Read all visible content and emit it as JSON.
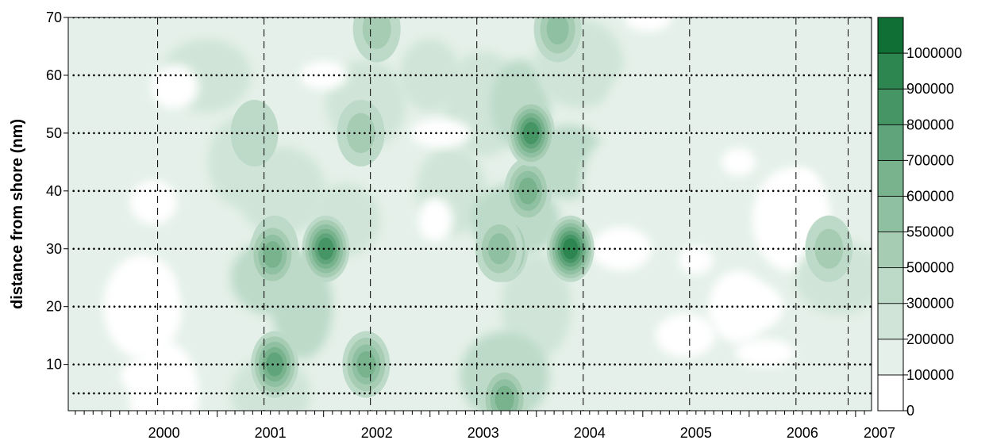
{
  "chart_data": {
    "type": "heatmap",
    "title": "",
    "xlabel": "",
    "ylabel": "distance from shore (nm)",
    "x_tick_labels": [
      "2000",
      "2001",
      "2002",
      "2003",
      "2004",
      "2005",
      "2006",
      "2007"
    ],
    "x_range": [
      1999.6,
      2007.15
    ],
    "y_ticks": [
      10,
      20,
      30,
      40,
      50,
      60,
      70
    ],
    "y_range": [
      2,
      70
    ],
    "colorbar": {
      "levels": [
        0,
        100000,
        200000,
        300000,
        500000,
        550000,
        600000,
        700000,
        800000,
        900000,
        1000000
      ],
      "labels": [
        "0",
        "100000",
        "200000",
        "300000",
        "500000",
        "550000",
        "600000",
        "700000",
        "800000",
        "900000",
        "1000000"
      ],
      "colors": [
        "#ffffff",
        "#e4f0e9",
        "#d0e5d8",
        "#bcdac7",
        "#a6cdb4",
        "#8fc0a1",
        "#78b38e",
        "#5fa47a",
        "#469565",
        "#2d8550",
        "#0f6f35"
      ]
    },
    "survey_vertical_lines": [
      2000.44,
      2001.44,
      2002.44,
      2003.44,
      2004.44,
      2005.44,
      2006.44,
      2006.93
    ],
    "hotspots": [
      {
        "x": 2001.54,
        "y": 30,
        "value": 550000
      },
      {
        "x": 2001.52,
        "y": 29,
        "value": 600000
      },
      {
        "x": 2002.02,
        "y": 30,
        "value": 800000
      },
      {
        "x": 2001.54,
        "y": 10,
        "value": 700000
      },
      {
        "x": 2002.4,
        "y": 10,
        "value": 600000
      },
      {
        "x": 2002.5,
        "y": 68,
        "value": 500000
      },
      {
        "x": 2003.7,
        "y": 30,
        "value": 800000
      },
      {
        "x": 2003.65,
        "y": 30,
        "value": 550000
      },
      {
        "x": 2003.92,
        "y": 40,
        "value": 600000
      },
      {
        "x": 2003.95,
        "y": 50,
        "value": 800000
      },
      {
        "x": 2003.7,
        "y": 4,
        "value": 600000
      },
      {
        "x": 2004.2,
        "y": 68,
        "value": 550000
      },
      {
        "x": 2004.32,
        "y": 30,
        "value": 900000
      },
      {
        "x": 2006.75,
        "y": 30,
        "value": 500000
      },
      {
        "x": 2001.35,
        "y": 50,
        "value": 300000
      },
      {
        "x": 2002.35,
        "y": 50,
        "value": 500000
      }
    ]
  }
}
